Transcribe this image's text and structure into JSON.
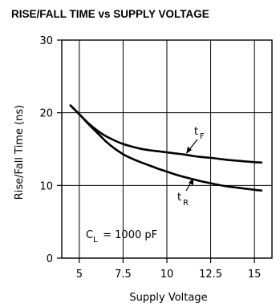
{
  "chart_data": {
    "type": "line",
    "title": "RISE/FALL TIME vs SUPPLY VOLTAGE",
    "xlabel": "Supply Voltage",
    "ylabel": "Rise/Fall Time (ns)",
    "xlim": [
      4,
      16
    ],
    "ylim": [
      0,
      30
    ],
    "x_ticks": [
      5,
      7.5,
      10,
      12.5,
      15
    ],
    "x_tick_labels": [
      "5",
      "7.5",
      "10",
      "12.5",
      "15"
    ],
    "y_ticks": [
      0,
      10,
      20,
      30
    ],
    "y_tick_labels": [
      "0",
      "10",
      "20",
      "30"
    ],
    "grid": true,
    "series": [
      {
        "label_main": "t",
        "label_sub": "F",
        "points": [
          [
            4.5,
            21
          ],
          [
            5,
            19.8
          ],
          [
            5.5,
            18.6
          ],
          [
            6,
            17.6
          ],
          [
            6.5,
            16.8
          ],
          [
            7,
            16.2
          ],
          [
            7.5,
            15.7
          ],
          [
            8,
            15.35
          ],
          [
            8.5,
            15.05
          ],
          [
            9,
            14.85
          ],
          [
            9.5,
            14.7
          ],
          [
            10,
            14.55
          ],
          [
            10.5,
            14.4
          ],
          [
            11,
            14.25
          ],
          [
            11.5,
            14.05
          ],
          [
            12,
            13.9
          ],
          [
            12.5,
            13.8
          ],
          [
            13,
            13.65
          ],
          [
            13.5,
            13.5
          ],
          [
            14,
            13.4
          ],
          [
            14.5,
            13.3
          ],
          [
            15,
            13.2
          ],
          [
            15.4,
            13.15
          ]
        ]
      },
      {
        "label_main": "t",
        "label_sub": "R",
        "points": [
          [
            4.5,
            21
          ],
          [
            5,
            19.8
          ],
          [
            5.5,
            18.5
          ],
          [
            6,
            17.3
          ],
          [
            6.5,
            16.1
          ],
          [
            7,
            15.1
          ],
          [
            7.5,
            14.3
          ],
          [
            8,
            13.7
          ],
          [
            8.5,
            13.2
          ],
          [
            9,
            12.75
          ],
          [
            9.5,
            12.3
          ],
          [
            10,
            11.9
          ],
          [
            10.5,
            11.5
          ],
          [
            11,
            11.15
          ],
          [
            11.5,
            10.85
          ],
          [
            12,
            10.55
          ],
          [
            12.5,
            10.3
          ],
          [
            13,
            10.05
          ],
          [
            13.5,
            9.85
          ],
          [
            14,
            9.7
          ],
          [
            14.5,
            9.55
          ],
          [
            15,
            9.4
          ],
          [
            15.4,
            9.3
          ]
        ]
      }
    ],
    "annotation": {
      "prefix": "C",
      "subscript": "L",
      "rest": " = 1000 pF"
    }
  }
}
